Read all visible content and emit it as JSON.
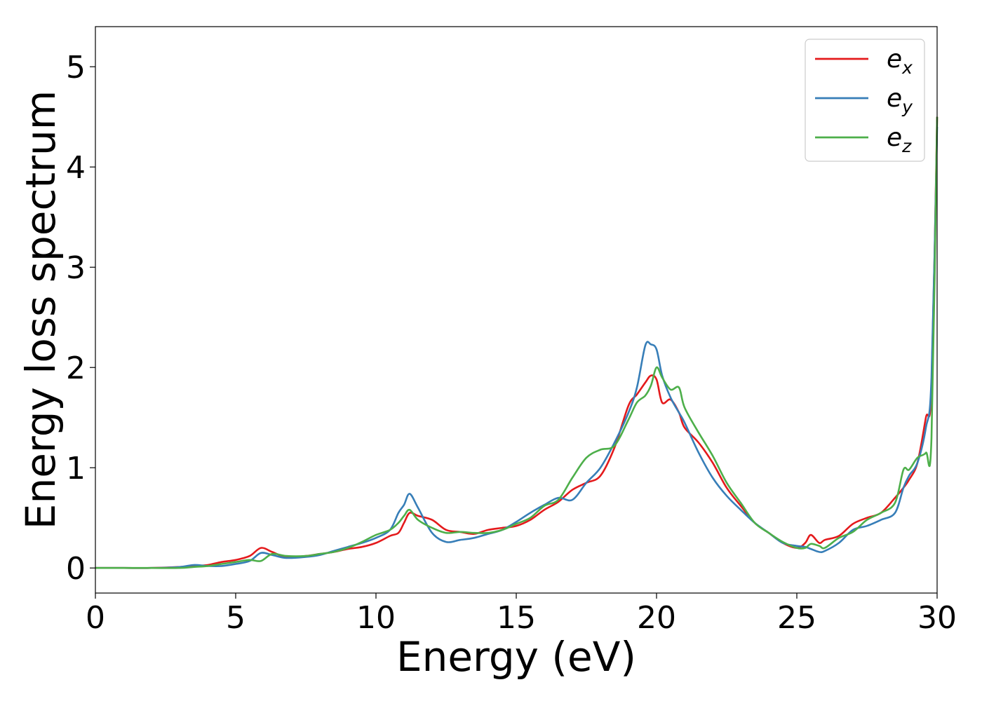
{
  "chart_data": {
    "type": "line",
    "xlabel": "Energy (eV)",
    "ylabel": "Energy loss spectrum",
    "xlim": [
      0,
      30
    ],
    "ylim": [
      -0.25,
      5.4
    ],
    "xticks": [
      0,
      5,
      10,
      15,
      20,
      25,
      30
    ],
    "yticks": [
      0,
      1,
      2,
      3,
      4,
      5
    ],
    "grid": false,
    "legend_position": "top-right",
    "x": [
      0,
      1,
      2,
      3,
      3.5,
      4,
      4.5,
      5,
      5.5,
      5.9,
      6.3,
      6.8,
      7.5,
      8,
      8.5,
      9,
      9.5,
      10,
      10.5,
      10.8,
      11,
      11.2,
      11.5,
      12,
      12.5,
      13,
      13.5,
      14,
      14.5,
      15,
      15.5,
      16,
      16.5,
      17,
      17.5,
      18,
      18.5,
      19,
      19.3,
      19.6,
      19.8,
      20,
      20.2,
      20.5,
      20.8,
      21,
      21.5,
      22,
      22.5,
      23,
      23.5,
      24,
      24.5,
      25,
      25.3,
      25.5,
      25.8,
      26,
      26.5,
      27,
      27.5,
      28,
      28.5,
      28.8,
      29,
      29.3,
      29.6,
      29.8,
      30
    ],
    "series": [
      {
        "name": "e",
        "subscript": "x",
        "color": "#e41a1c",
        "values": [
          0,
          0,
          0,
          0.01,
          0.02,
          0.03,
          0.06,
          0.08,
          0.12,
          0.2,
          0.16,
          0.11,
          0.12,
          0.14,
          0.16,
          0.19,
          0.21,
          0.25,
          0.32,
          0.35,
          0.45,
          0.55,
          0.52,
          0.48,
          0.38,
          0.36,
          0.34,
          0.38,
          0.4,
          0.42,
          0.48,
          0.58,
          0.66,
          0.78,
          0.85,
          0.92,
          1.2,
          1.62,
          1.73,
          1.85,
          1.92,
          1.88,
          1.65,
          1.68,
          1.55,
          1.4,
          1.25,
          1.05,
          0.8,
          0.62,
          0.45,
          0.35,
          0.25,
          0.2,
          0.25,
          0.33,
          0.25,
          0.28,
          0.32,
          0.44,
          0.5,
          0.55,
          0.7,
          0.8,
          0.88,
          1.05,
          1.5,
          1.8,
          4.5
        ]
      },
      {
        "name": "e",
        "subscript": "y",
        "color": "#377eb8",
        "values": [
          0,
          0,
          0,
          0.01,
          0.03,
          0.02,
          0.02,
          0.04,
          0.07,
          0.15,
          0.13,
          0.1,
          0.11,
          0.13,
          0.17,
          0.21,
          0.25,
          0.3,
          0.38,
          0.55,
          0.63,
          0.74,
          0.6,
          0.35,
          0.26,
          0.28,
          0.3,
          0.34,
          0.38,
          0.46,
          0.55,
          0.63,
          0.7,
          0.68,
          0.85,
          1.0,
          1.25,
          1.55,
          1.8,
          2.22,
          2.23,
          2.18,
          1.92,
          1.7,
          1.55,
          1.45,
          1.15,
          0.9,
          0.72,
          0.58,
          0.45,
          0.35,
          0.25,
          0.22,
          0.21,
          0.19,
          0.16,
          0.17,
          0.25,
          0.38,
          0.42,
          0.48,
          0.55,
          0.8,
          0.92,
          1.05,
          1.4,
          1.9,
          4.4
        ]
      },
      {
        "name": "e",
        "subscript": "z",
        "color": "#4daf4a",
        "values": [
          0,
          0,
          0,
          0,
          0.01,
          0.02,
          0.04,
          0.06,
          0.08,
          0.07,
          0.14,
          0.12,
          0.12,
          0.14,
          0.16,
          0.2,
          0.26,
          0.33,
          0.38,
          0.45,
          0.52,
          0.58,
          0.48,
          0.4,
          0.35,
          0.36,
          0.35,
          0.35,
          0.38,
          0.44,
          0.5,
          0.62,
          0.68,
          0.9,
          1.1,
          1.18,
          1.22,
          1.48,
          1.65,
          1.72,
          1.82,
          2.0,
          1.9,
          1.78,
          1.8,
          1.6,
          1.35,
          1.12,
          0.85,
          0.65,
          0.45,
          0.35,
          0.26,
          0.2,
          0.2,
          0.24,
          0.22,
          0.2,
          0.3,
          0.36,
          0.48,
          0.55,
          0.65,
          0.98,
          0.98,
          1.1,
          1.15,
          1.3,
          4.5
        ]
      }
    ]
  }
}
